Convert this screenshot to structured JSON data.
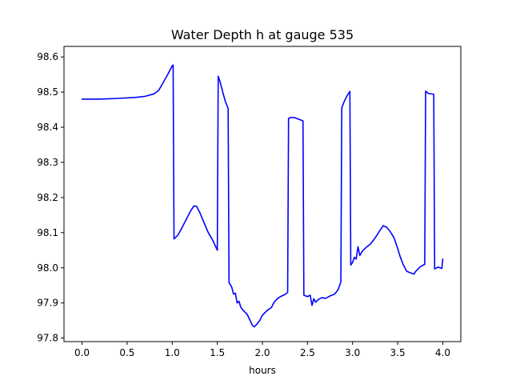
{
  "chart_data": {
    "type": "line",
    "title": "Water Depth h at gauge 535",
    "xlabel": "hours",
    "ylabel": "",
    "xlim": [
      -0.2,
      4.2
    ],
    "ylim": [
      97.79,
      98.63
    ],
    "x_ticks": [
      0.0,
      0.5,
      1.0,
      1.5,
      2.0,
      2.5,
      3.0,
      3.5,
      4.0
    ],
    "x_tick_labels": [
      "0.0",
      "0.5",
      "1.0",
      "1.5",
      "2.0",
      "2.5",
      "3.0",
      "3.5",
      "4.0"
    ],
    "y_ticks": [
      97.8,
      97.9,
      98.0,
      98.1,
      98.2,
      98.3,
      98.4,
      98.5,
      98.6
    ],
    "y_tick_labels": [
      "97.8",
      "97.9",
      "98.0",
      "98.1",
      "98.2",
      "98.3",
      "98.4",
      "98.5",
      "98.6"
    ],
    "grid": false,
    "series": [
      {
        "color": "#0000ff",
        "points": [
          [
            0.0,
            98.48
          ],
          [
            0.2,
            98.48
          ],
          [
            0.4,
            98.482
          ],
          [
            0.6,
            98.485
          ],
          [
            0.7,
            98.488
          ],
          [
            0.8,
            98.495
          ],
          [
            0.85,
            98.505
          ],
          [
            0.9,
            98.527
          ],
          [
            0.95,
            98.55
          ],
          [
            1.0,
            98.575
          ],
          [
            1.01,
            98.577
          ],
          [
            1.02,
            98.082
          ],
          [
            1.06,
            98.092
          ],
          [
            1.1,
            98.11
          ],
          [
            1.15,
            98.135
          ],
          [
            1.2,
            98.16
          ],
          [
            1.24,
            98.176
          ],
          [
            1.27,
            98.175
          ],
          [
            1.31,
            98.155
          ],
          [
            1.35,
            98.13
          ],
          [
            1.4,
            98.1
          ],
          [
            1.45,
            98.078
          ],
          [
            1.5,
            98.05
          ],
          [
            1.51,
            98.545
          ],
          [
            1.53,
            98.53
          ],
          [
            1.56,
            98.5
          ],
          [
            1.59,
            98.473
          ],
          [
            1.62,
            98.453
          ],
          [
            1.63,
            97.958
          ],
          [
            1.66,
            97.945
          ],
          [
            1.68,
            97.925
          ],
          [
            1.7,
            97.928
          ],
          [
            1.72,
            97.9
          ],
          [
            1.74,
            97.905
          ],
          [
            1.76,
            97.888
          ],
          [
            1.79,
            97.878
          ],
          [
            1.83,
            97.868
          ],
          [
            1.86,
            97.852
          ],
          [
            1.89,
            97.836
          ],
          [
            1.91,
            97.832
          ],
          [
            1.94,
            97.84
          ],
          [
            1.97,
            97.85
          ],
          [
            2.0,
            97.865
          ],
          [
            2.05,
            97.878
          ],
          [
            2.1,
            97.887
          ],
          [
            2.13,
            97.902
          ],
          [
            2.17,
            97.913
          ],
          [
            2.2,
            97.918
          ],
          [
            2.25,
            97.924
          ],
          [
            2.28,
            97.93
          ],
          [
            2.29,
            98.425
          ],
          [
            2.32,
            98.428
          ],
          [
            2.36,
            98.427
          ],
          [
            2.4,
            98.423
          ],
          [
            2.45,
            98.418
          ],
          [
            2.46,
            97.922
          ],
          [
            2.5,
            97.918
          ],
          [
            2.53,
            97.922
          ],
          [
            2.55,
            97.893
          ],
          [
            2.57,
            97.912
          ],
          [
            2.59,
            97.902
          ],
          [
            2.62,
            97.91
          ],
          [
            2.66,
            97.915
          ],
          [
            2.7,
            97.913
          ],
          [
            2.75,
            97.92
          ],
          [
            2.8,
            97.925
          ],
          [
            2.84,
            97.938
          ],
          [
            2.87,
            97.96
          ],
          [
            2.88,
            98.455
          ],
          [
            2.91,
            98.475
          ],
          [
            2.94,
            98.49
          ],
          [
            2.97,
            98.502
          ],
          [
            2.98,
            98.008
          ],
          [
            3.0,
            98.015
          ],
          [
            3.02,
            98.03
          ],
          [
            3.04,
            98.025
          ],
          [
            3.06,
            98.06
          ],
          [
            3.08,
            98.035
          ],
          [
            3.11,
            98.048
          ],
          [
            3.15,
            98.058
          ],
          [
            3.2,
            98.068
          ],
          [
            3.25,
            98.085
          ],
          [
            3.3,
            98.105
          ],
          [
            3.34,
            98.12
          ],
          [
            3.38,
            98.115
          ],
          [
            3.42,
            98.102
          ],
          [
            3.46,
            98.085
          ],
          [
            3.5,
            98.055
          ],
          [
            3.53,
            98.03
          ],
          [
            3.56,
            98.01
          ],
          [
            3.6,
            97.99
          ],
          [
            3.65,
            97.985
          ],
          [
            3.68,
            97.982
          ],
          [
            3.7,
            97.99
          ],
          [
            3.75,
            98.003
          ],
          [
            3.8,
            98.01
          ],
          [
            3.81,
            98.503
          ],
          [
            3.84,
            98.496
          ],
          [
            3.9,
            98.494
          ],
          [
            3.91,
            97.997
          ],
          [
            3.95,
            98.002
          ],
          [
            3.99,
            97.998
          ],
          [
            4.0,
            98.025
          ]
        ]
      }
    ]
  }
}
